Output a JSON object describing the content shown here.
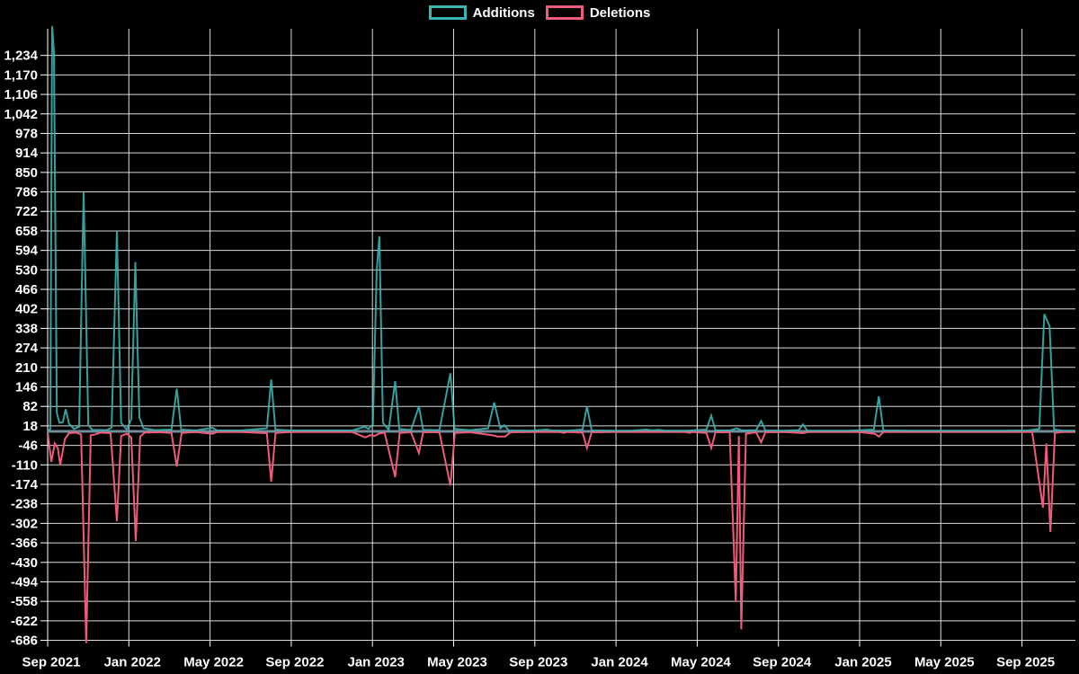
{
  "page": {
    "background_color": "#000000",
    "text_color": "#ffffff"
  },
  "legend": {
    "items": [
      {
        "label": "Additions",
        "color": "#3bb5b2"
      },
      {
        "label": "Deletions",
        "color": "#ef5b7a"
      }
    ]
  },
  "chart_data": {
    "type": "line",
    "title": "",
    "legend_entries": [
      "Additions",
      "Deletions"
    ],
    "legend_position": "top-center",
    "grid": "on",
    "background": "#000000",
    "gridline_color": "#ffffff",
    "x_axis": {
      "unit": "months since Sep 2021 (weekly data points)",
      "tick_labels": [
        "Sep 2021",
        "Jan 2022",
        "May 2022",
        "Sep 2022",
        "Jan 2023",
        "May 2023",
        "Sep 2023",
        "Jan 2024",
        "May 2024",
        "Sep 2024",
        "Jan 2025",
        "May 2025",
        "Sep 2025"
      ],
      "tick_interval_months": 4,
      "range_months": [
        0,
        50.62
      ]
    },
    "y_axis": {
      "min": -686,
      "max": 1234,
      "step": 64,
      "tick_labels": [
        "1,234",
        "1,170",
        "1,106",
        "1,042",
        "978",
        "914",
        "850",
        "786",
        "722",
        "658",
        "594",
        "530",
        "466",
        "402",
        "338",
        "274",
        "210",
        "146",
        "82",
        "18",
        "-46",
        "-110",
        "-174",
        "-238",
        "-302",
        "-366",
        "-430",
        "-494",
        "-558",
        "-622",
        "-686"
      ]
    },
    "zero_baseline_color": "#7f9dab",
    "series": [
      {
        "name": "Additions",
        "color": "#3bb5b2",
        "points": [
          [
            0,
            2
          ],
          [
            0.13,
            8
          ],
          [
            0.22,
            1330
          ],
          [
            0.31,
            1245
          ],
          [
            0.45,
            60
          ],
          [
            0.58,
            28
          ],
          [
            0.75,
            30
          ],
          [
            0.89,
            73
          ],
          [
            1.05,
            25
          ],
          [
            1.3,
            8
          ],
          [
            1.55,
            15
          ],
          [
            1.77,
            786
          ],
          [
            2.0,
            20
          ],
          [
            2.2,
            5
          ],
          [
            2.9,
            4
          ],
          [
            3.15,
            12
          ],
          [
            3.41,
            658
          ],
          [
            3.62,
            28
          ],
          [
            3.9,
            6
          ],
          [
            4.12,
            40
          ],
          [
            4.32,
            556
          ],
          [
            4.52,
            46
          ],
          [
            4.72,
            10
          ],
          [
            5.3,
            4
          ],
          [
            6.1,
            6
          ],
          [
            6.36,
            140
          ],
          [
            6.58,
            6
          ],
          [
            7.3,
            3
          ],
          [
            8.12,
            12
          ],
          [
            8.35,
            3
          ],
          [
            9.5,
            3
          ],
          [
            10.8,
            10
          ],
          [
            11.01,
            170
          ],
          [
            11.22,
            6
          ],
          [
            12.0,
            3
          ],
          [
            13.5,
            3
          ],
          [
            15.0,
            3
          ],
          [
            15.62,
            15
          ],
          [
            15.8,
            8
          ],
          [
            16.02,
            22
          ],
          [
            16.21,
            525
          ],
          [
            16.34,
            640
          ],
          [
            16.52,
            28
          ],
          [
            16.8,
            5
          ],
          [
            17.12,
            165
          ],
          [
            17.32,
            8
          ],
          [
            17.9,
            4
          ],
          [
            18.29,
            82
          ],
          [
            18.5,
            5
          ],
          [
            19.3,
            4
          ],
          [
            19.84,
            191
          ],
          [
            20.05,
            8
          ],
          [
            20.8,
            4
          ],
          [
            21.7,
            10
          ],
          [
            22.0,
            95
          ],
          [
            22.3,
            10
          ],
          [
            22.5,
            20
          ],
          [
            22.72,
            3
          ],
          [
            23.8,
            2
          ],
          [
            24.6,
            6
          ],
          [
            24.82,
            3
          ],
          [
            25.6,
            2
          ],
          [
            26.35,
            6
          ],
          [
            26.57,
            82
          ],
          [
            26.8,
            3
          ],
          [
            27.8,
            2
          ],
          [
            28.8,
            2
          ],
          [
            29.5,
            6
          ],
          [
            29.8,
            3
          ],
          [
            30.1,
            5
          ],
          [
            30.4,
            2
          ],
          [
            31.5,
            2
          ],
          [
            32.45,
            6
          ],
          [
            32.69,
            52
          ],
          [
            32.9,
            3
          ],
          [
            33.6,
            3
          ],
          [
            33.95,
            10
          ],
          [
            34.2,
            3
          ],
          [
            34.9,
            4
          ],
          [
            35.15,
            34
          ],
          [
            35.36,
            3
          ],
          [
            36.3,
            2
          ],
          [
            37.0,
            4
          ],
          [
            37.21,
            23
          ],
          [
            37.42,
            2
          ],
          [
            38.5,
            2
          ],
          [
            39.5,
            2
          ],
          [
            40.7,
            6
          ],
          [
            40.95,
            115
          ],
          [
            41.17,
            3
          ],
          [
            42.5,
            2
          ],
          [
            44.0,
            2
          ],
          [
            45.5,
            2
          ],
          [
            47.0,
            2
          ],
          [
            48.3,
            3
          ],
          [
            48.85,
            8
          ],
          [
            49.1,
            385
          ],
          [
            49.36,
            345
          ],
          [
            49.58,
            6
          ],
          [
            50.0,
            2
          ],
          [
            50.62,
            2
          ]
        ]
      },
      {
        "name": "Deletions",
        "color": "#ef5b7a",
        "points": [
          [
            0,
            -2
          ],
          [
            0.18,
            -100
          ],
          [
            0.35,
            -40
          ],
          [
            0.5,
            -55
          ],
          [
            0.62,
            -110
          ],
          [
            0.85,
            -25
          ],
          [
            1.05,
            -6
          ],
          [
            1.4,
            -4
          ],
          [
            1.65,
            -10
          ],
          [
            1.9,
            -695
          ],
          [
            2.12,
            -12
          ],
          [
            2.3,
            -11
          ],
          [
            2.6,
            -4
          ],
          [
            3.1,
            -6
          ],
          [
            3.41,
            -295
          ],
          [
            3.62,
            -15
          ],
          [
            3.9,
            -8
          ],
          [
            4.12,
            -20
          ],
          [
            4.34,
            -360
          ],
          [
            4.56,
            -17
          ],
          [
            4.78,
            -4
          ],
          [
            5.5,
            -3
          ],
          [
            6.1,
            -5
          ],
          [
            6.36,
            -115
          ],
          [
            6.6,
            -5
          ],
          [
            7.3,
            -2
          ],
          [
            8.12,
            -8
          ],
          [
            8.35,
            -2
          ],
          [
            9.5,
            -2
          ],
          [
            10.8,
            -6
          ],
          [
            11.01,
            -165
          ],
          [
            11.23,
            -5
          ],
          [
            12.0,
            -2
          ],
          [
            13.5,
            -2
          ],
          [
            15.0,
            -2
          ],
          [
            15.65,
            -20
          ],
          [
            15.9,
            -12
          ],
          [
            16.1,
            -15
          ],
          [
            16.3,
            -8
          ],
          [
            16.6,
            -4
          ],
          [
            17.12,
            -150
          ],
          [
            17.34,
            -5
          ],
          [
            17.9,
            -3
          ],
          [
            18.29,
            -71
          ],
          [
            18.5,
            -3
          ],
          [
            19.3,
            -3
          ],
          [
            19.84,
            -178
          ],
          [
            20.06,
            -5
          ],
          [
            20.8,
            -3
          ],
          [
            21.87,
            -12
          ],
          [
            22.17,
            -17
          ],
          [
            22.54,
            -17
          ],
          [
            22.8,
            -3
          ],
          [
            23.8,
            -2
          ],
          [
            25.2,
            -2
          ],
          [
            25.42,
            -5
          ],
          [
            25.6,
            -2
          ],
          [
            26.35,
            -4
          ],
          [
            26.57,
            -55
          ],
          [
            26.8,
            -3
          ],
          [
            27.8,
            -2
          ],
          [
            29.0,
            -2
          ],
          [
            30.3,
            -2
          ],
          [
            31.4,
            -2
          ],
          [
            31.62,
            -5
          ],
          [
            31.8,
            -2
          ],
          [
            32.45,
            -5
          ],
          [
            32.69,
            -55
          ],
          [
            32.9,
            -3
          ],
          [
            33.6,
            -3
          ],
          [
            33.9,
            -560
          ],
          [
            34.05,
            -15
          ],
          [
            34.17,
            -650
          ],
          [
            34.4,
            -8
          ],
          [
            34.9,
            -3
          ],
          [
            35.15,
            -36
          ],
          [
            35.36,
            -3
          ],
          [
            36.3,
            -2
          ],
          [
            37.21,
            -6
          ],
          [
            37.5,
            -2
          ],
          [
            38.5,
            -2
          ],
          [
            40.0,
            -2
          ],
          [
            40.75,
            -8
          ],
          [
            40.95,
            -17
          ],
          [
            41.17,
            -2
          ],
          [
            42.5,
            -2
          ],
          [
            44.0,
            -2
          ],
          [
            45.5,
            -2
          ],
          [
            47.0,
            -2
          ],
          [
            48.5,
            -2
          ],
          [
            49.03,
            -250
          ],
          [
            49.2,
            -40
          ],
          [
            49.4,
            -330
          ],
          [
            49.62,
            -5
          ],
          [
            50.0,
            -2
          ],
          [
            50.62,
            -2
          ]
        ]
      }
    ]
  }
}
